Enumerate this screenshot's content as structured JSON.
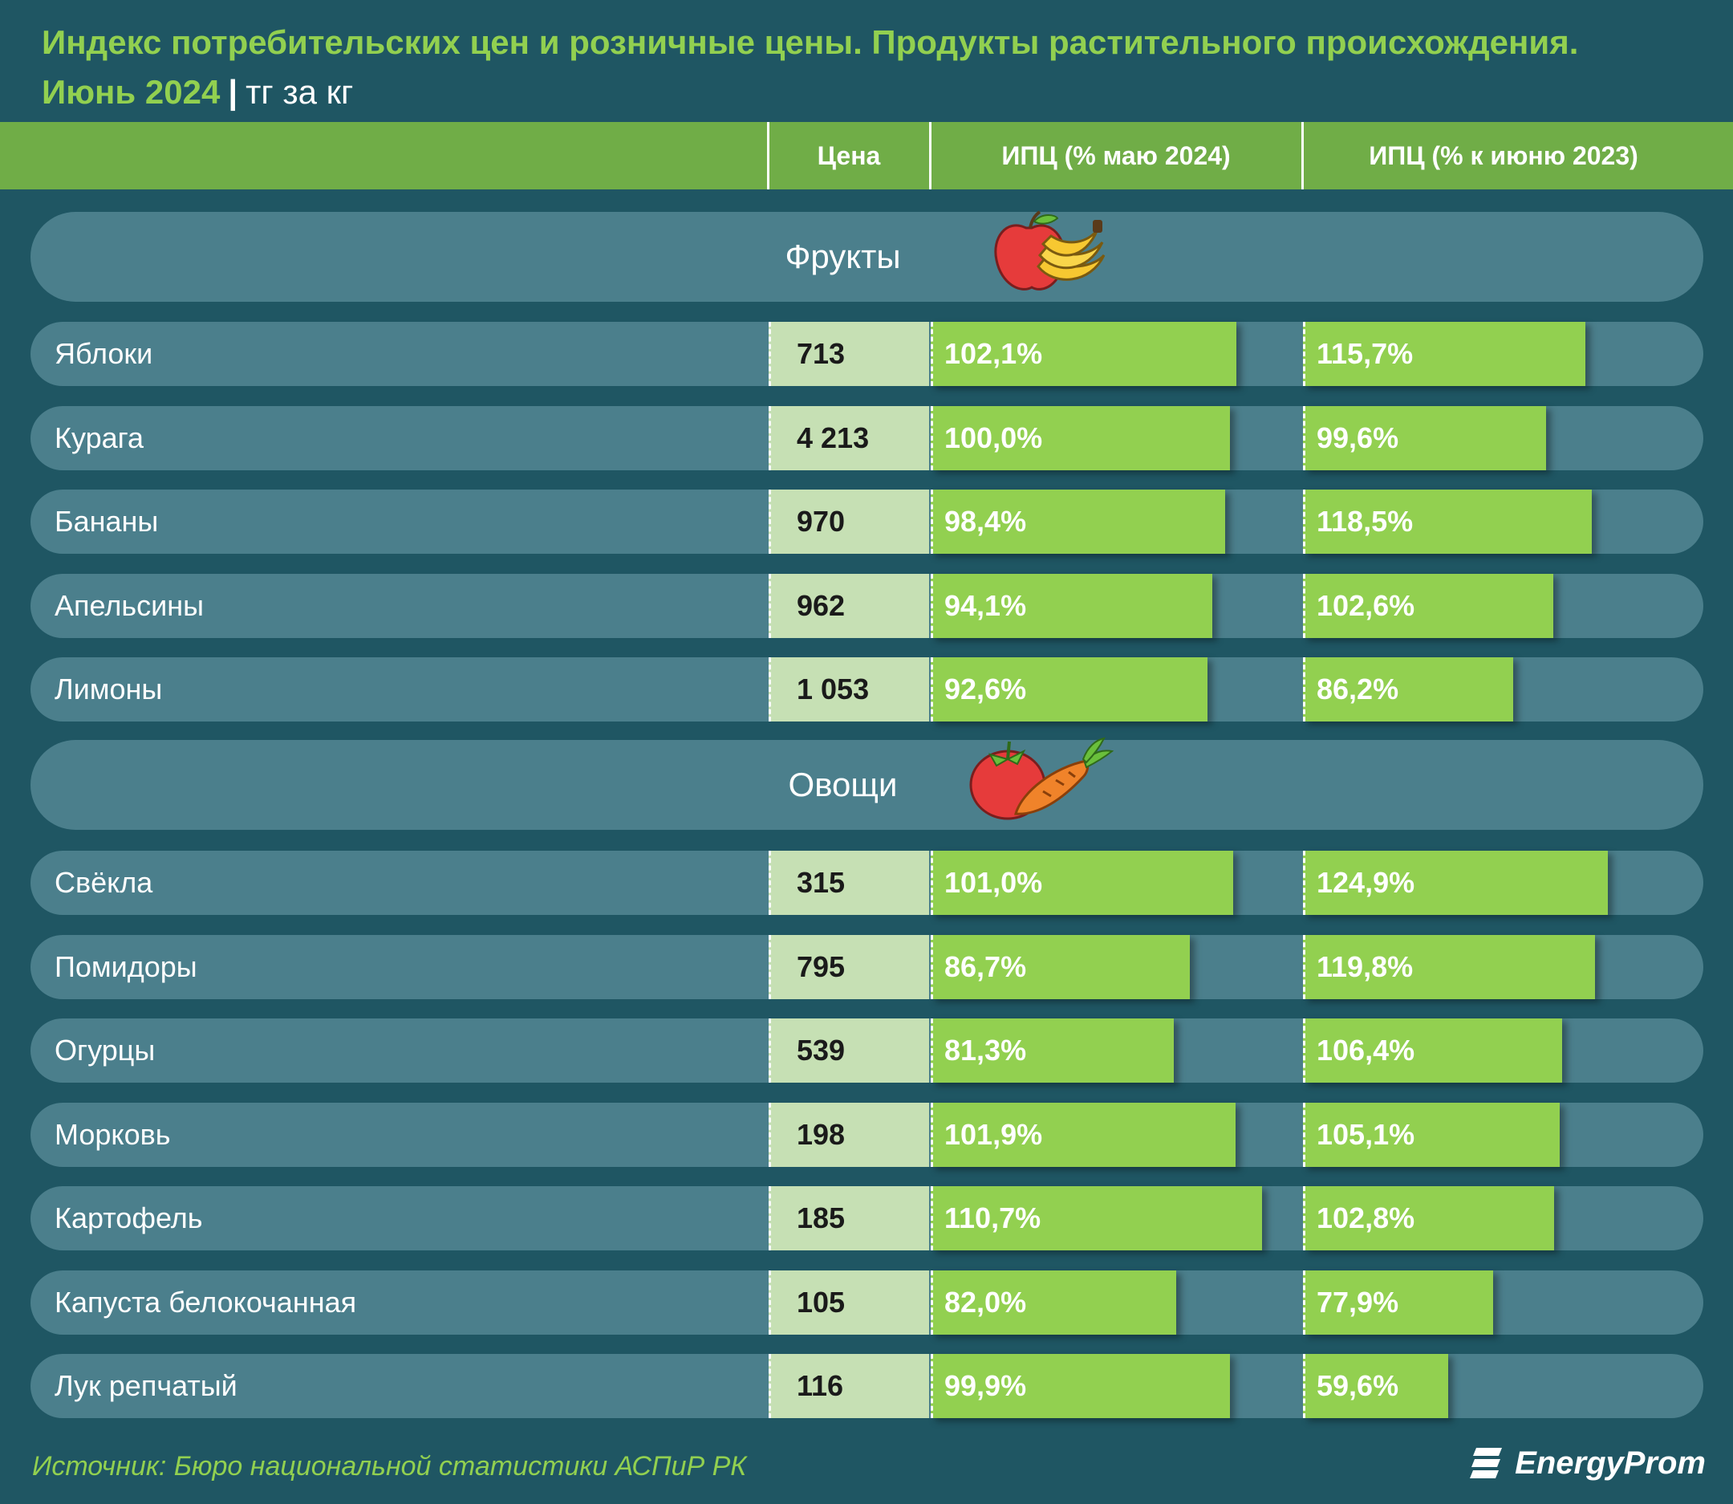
{
  "title_line1": "Индекс потребительских цен и розничные цены. Продукты растительного происхождения.",
  "title_period": "Июнь 2024",
  "title_sep": "|",
  "title_unit": "тг за кг",
  "headers": {
    "price": "Цена",
    "cpi_month": "ИПЦ (% маю 2024)",
    "cpi_year": "ИПЦ (% к июню 2023)"
  },
  "sections": {
    "fruits": "Фрукты",
    "vegetables": "Овощи"
  },
  "icons": [
    "apple-banana-icon",
    "tomato-carrot-icon",
    "energyprom-logo-icon"
  ],
  "colors": {
    "background": "#1f5663",
    "accent": "#92d050",
    "header": "#70ad47",
    "price_cell": "#c6e0b4",
    "row": "#4b7f8c"
  },
  "chart_data": {
    "type": "bar",
    "title": "Индекс потребительских цен и розничные цены. Продукты растительного происхождения.",
    "units": "тг за кг",
    "groups": [
      {
        "name": "Фрукты",
        "items": [
          {
            "label": "Яблоки",
            "price": "713",
            "cpi_month": 102.1,
            "cpi_month_label": "102,1%",
            "cpi_year": 115.7,
            "cpi_year_label": "115,7%"
          },
          {
            "label": "Курага",
            "price": "4 213",
            "cpi_month": 100.0,
            "cpi_month_label": "100,0%",
            "cpi_year": 99.6,
            "cpi_year_label": "99,6%"
          },
          {
            "label": "Бананы",
            "price": "970",
            "cpi_month": 98.4,
            "cpi_month_label": "98,4%",
            "cpi_year": 118.5,
            "cpi_year_label": "118,5%"
          },
          {
            "label": "Апельсины",
            "price": "962",
            "cpi_month": 94.1,
            "cpi_month_label": "94,1%",
            "cpi_year": 102.6,
            "cpi_year_label": "102,6%"
          },
          {
            "label": "Лимоны",
            "price": "1 053",
            "cpi_month": 92.6,
            "cpi_month_label": "92,6%",
            "cpi_year": 86.2,
            "cpi_year_label": "86,2%"
          }
        ]
      },
      {
        "name": "Овощи",
        "items": [
          {
            "label": "Свёкла",
            "price": "315",
            "cpi_month": 101.0,
            "cpi_month_label": "101,0%",
            "cpi_year": 124.9,
            "cpi_year_label": "124,9%"
          },
          {
            "label": "Помидоры",
            "price": "795",
            "cpi_month": 86.7,
            "cpi_month_label": "86,7%",
            "cpi_year": 119.8,
            "cpi_year_label": "119,8%"
          },
          {
            "label": "Огурцы",
            "price": "539",
            "cpi_month": 81.3,
            "cpi_month_label": "81,3%",
            "cpi_year": 106.4,
            "cpi_year_label": "106,4%"
          },
          {
            "label": "Морковь",
            "price": "198",
            "cpi_month": 101.9,
            "cpi_month_label": "101,9%",
            "cpi_year": 105.1,
            "cpi_year_label": "105,1%"
          },
          {
            "label": "Картофель",
            "price": "185",
            "cpi_month": 110.7,
            "cpi_month_label": "110,7%",
            "cpi_year": 102.8,
            "cpi_year_label": "102,8%"
          },
          {
            "label": "Капуста белокочанная",
            "price": "105",
            "cpi_month": 82.0,
            "cpi_month_label": "82,0%",
            "cpi_year": 77.9,
            "cpi_year_label": "77,9%"
          },
          {
            "label": "Лук репчатый",
            "price": "116",
            "cpi_month": 99.9,
            "cpi_month_label": "99,9%",
            "cpi_year": 59.6,
            "cpi_year_label": "59,6%"
          }
        ]
      }
    ]
  },
  "footer": {
    "source": "Источник: Бюро национальной статистики АСПиР РК",
    "brand": "EnergyProm"
  }
}
